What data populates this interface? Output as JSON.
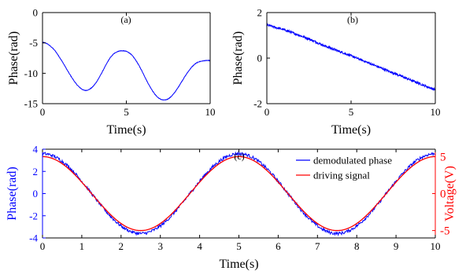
{
  "chart_data": [
    {
      "id": "a",
      "type": "line",
      "panel_label": "(a)",
      "xlabel": "Time(s)",
      "ylabel": "Phase(rad)",
      "xlim": [
        0,
        10
      ],
      "ylim": [
        -15,
        0
      ],
      "xticks": [
        0,
        5,
        10
      ],
      "yticks": [
        0,
        -5,
        -10,
        -15
      ],
      "grid": false,
      "series": [
        {
          "color": "#0000ff",
          "x": [
            0,
            0.25,
            0.5,
            0.75,
            1,
            1.25,
            1.5,
            1.75,
            2,
            2.25,
            2.5,
            2.75,
            3,
            3.25,
            3.5,
            3.75,
            4,
            4.25,
            4.5,
            4.75,
            5,
            5.25,
            5.5,
            5.75,
            6,
            6.25,
            6.5,
            6.75,
            7,
            7.25,
            7.5,
            7.75,
            8,
            8.25,
            8.5,
            8.75,
            9,
            9.25,
            9.5,
            9.75,
            10
          ],
          "y": [
            -4.9,
            -5.1,
            -5.6,
            -6.3,
            -7.3,
            -8.4,
            -9.6,
            -10.7,
            -11.7,
            -12.4,
            -12.8,
            -12.7,
            -12.2,
            -11.3,
            -10.1,
            -8.8,
            -7.6,
            -6.8,
            -6.4,
            -6.3,
            -6.4,
            -6.8,
            -7.6,
            -8.7,
            -10.0,
            -11.4,
            -12.6,
            -13.6,
            -14.2,
            -14.4,
            -14.2,
            -13.6,
            -12.7,
            -11.6,
            -10.5,
            -9.5,
            -8.7,
            -8.2,
            -8.0,
            -7.9,
            -7.9
          ]
        }
      ]
    },
    {
      "id": "b",
      "type": "line",
      "panel_label": "(b)",
      "xlabel": "Time(s)",
      "ylabel": "Phase(rad)",
      "xlim": [
        0,
        10
      ],
      "ylim": [
        -2,
        2
      ],
      "xticks": [
        0,
        5,
        10
      ],
      "yticks": [
        2,
        0,
        -2
      ],
      "grid": false,
      "series": [
        {
          "color": "#0000ff",
          "x": [
            0,
            0.5,
            1,
            1.5,
            2,
            2.5,
            3,
            3.5,
            4,
            4.5,
            5,
            5.5,
            6,
            6.5,
            7,
            7.5,
            8,
            8.5,
            9,
            9.5,
            10
          ],
          "y": [
            1.45,
            1.35,
            1.25,
            1.12,
            0.98,
            0.84,
            0.68,
            0.52,
            0.38,
            0.24,
            0.1,
            -0.05,
            -0.2,
            -0.35,
            -0.5,
            -0.65,
            -0.8,
            -0.95,
            -1.1,
            -1.25,
            -1.38
          ]
        }
      ]
    },
    {
      "id": "c",
      "type": "line",
      "panel_label": "(c)",
      "xlabel": "Time(s)",
      "ylabel": "Phase(rad)",
      "ylabel_right": "Voltage(V)",
      "xlim": [
        0,
        10
      ],
      "ylim": [
        -4,
        4
      ],
      "ylim_right": [
        -6,
        6
      ],
      "xticks": [
        0,
        1,
        2,
        3,
        4,
        5,
        6,
        7,
        8,
        9,
        10
      ],
      "yticks": [
        4,
        2,
        0,
        -2,
        -4
      ],
      "yticks_right": [
        5,
        0,
        -5
      ],
      "grid": false,
      "legend_position": "top-right",
      "series": [
        {
          "name": "demodulated phase",
          "color": "#0000ff",
          "axis": "left",
          "function": "sine",
          "amplitude": 3.6,
          "period": 5,
          "phase_offset_s": 0
        },
        {
          "name": "driving signal",
          "color": "#ff0000",
          "axis": "right",
          "function": "sine",
          "amplitude": 5.0,
          "period": 5,
          "phase_offset_s": 0
        }
      ]
    }
  ]
}
